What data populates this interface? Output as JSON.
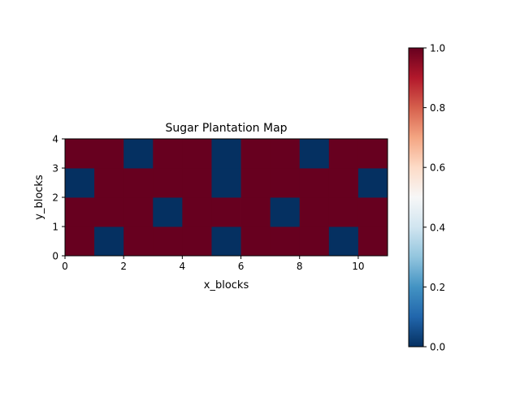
{
  "chart_data": {
    "type": "heatmap",
    "title": "Sugar Plantation Map",
    "xlabel": "x_blocks",
    "ylabel": "y_blocks",
    "xlim": [
      0,
      11
    ],
    "ylim": [
      0,
      4
    ],
    "xticks": [
      0,
      2,
      4,
      6,
      8,
      10
    ],
    "yticks": [
      0,
      1,
      2,
      3,
      4
    ],
    "colormap": "RdBu_r",
    "colorbar": {
      "range": [
        0.0,
        1.0
      ],
      "tick_labels": [
        "0.0",
        "0.2",
        "0.4",
        "0.6",
        "0.8",
        "1.0"
      ],
      "color_low": "#053061",
      "color_high": "#67001f"
    },
    "grid": false,
    "rows_bottom_to_top": [
      [
        1,
        0,
        1,
        1,
        1,
        0,
        1,
        1,
        1,
        0,
        1
      ],
      [
        1,
        1,
        1,
        0,
        1,
        1,
        1,
        0,
        1,
        1,
        1
      ],
      [
        0,
        1,
        1,
        1,
        1,
        0,
        1,
        1,
        1,
        1,
        0
      ],
      [
        1,
        1,
        0,
        1,
        1,
        0,
        1,
        1,
        0,
        1,
        1
      ]
    ]
  }
}
